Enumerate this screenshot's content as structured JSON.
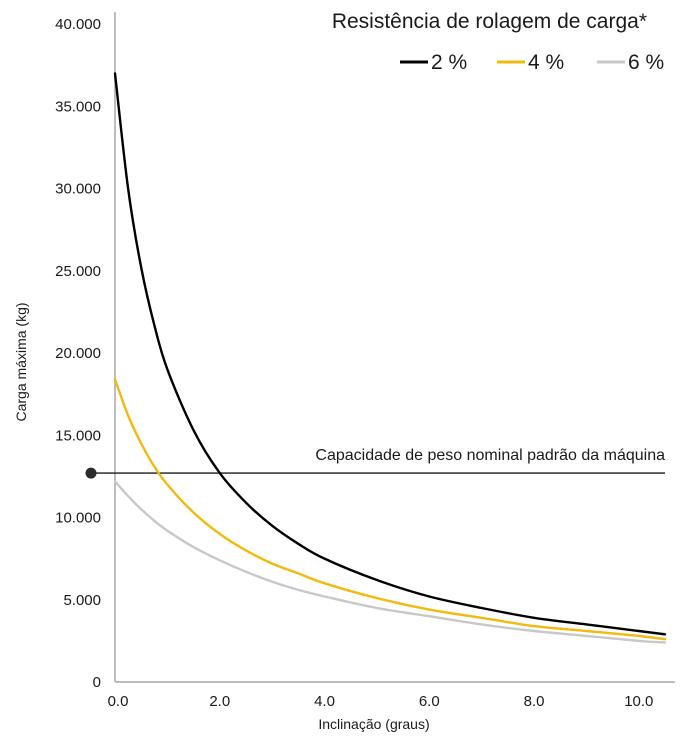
{
  "chart_data": {
    "type": "line",
    "title": "",
    "xlabel": "Inclinação (graus)",
    "ylabel": "Carga máxima (kg)",
    "xlim": [
      0,
      10.5
    ],
    "ylim": [
      0,
      40000
    ],
    "x_ticks": [
      0,
      2,
      4,
      6,
      8,
      10
    ],
    "x_tick_labels": [
      "0.0",
      "2.0",
      "4.0",
      "6.0",
      "8.0",
      "10.0"
    ],
    "y_ticks": [
      0,
      5000,
      10000,
      15000,
      20000,
      25000,
      30000,
      35000,
      40000
    ],
    "y_tick_labels": [
      "0",
      "5.000",
      "10.000",
      "15.000",
      "20.000",
      "25.000",
      "30.000",
      "35.000",
      "40.000"
    ],
    "grid": false,
    "legend": {
      "title": "Resistência de rolagem de carga*",
      "placement": "top-right"
    },
    "series": [
      {
        "name": "2 %",
        "color": "#000000",
        "x": [
          0,
          0.25,
          0.5,
          0.75,
          1.0,
          1.5,
          2.0,
          2.5,
          3.0,
          3.5,
          4.0,
          5.0,
          6.0,
          7.0,
          8.0,
          9.0,
          10.0,
          10.5
        ],
        "values": [
          37000,
          30000,
          25200,
          21700,
          19000,
          15300,
          12700,
          10900,
          9500,
          8400,
          7500,
          6200,
          5200,
          4500,
          3900,
          3500,
          3100,
          2900
        ]
      },
      {
        "name": "4 %",
        "color": "#f2b90f",
        "x": [
          0,
          0.25,
          0.5,
          0.75,
          1.0,
          1.5,
          2.0,
          2.5,
          3.0,
          3.5,
          4.0,
          5.0,
          6.0,
          7.0,
          8.0,
          9.0,
          10.0,
          10.5
        ],
        "values": [
          18400,
          16200,
          14500,
          13100,
          12000,
          10300,
          9000,
          8000,
          7200,
          6600,
          6000,
          5100,
          4400,
          3900,
          3400,
          3100,
          2800,
          2600
        ]
      },
      {
        "name": "6 %",
        "color": "#c8c8c8",
        "x": [
          0,
          0.25,
          0.5,
          0.75,
          1.0,
          1.5,
          2.0,
          2.5,
          3.0,
          3.5,
          4.0,
          5.0,
          6.0,
          7.0,
          8.0,
          9.0,
          10.0,
          10.5
        ],
        "values": [
          12200,
          11300,
          10500,
          9800,
          9200,
          8200,
          7400,
          6700,
          6100,
          5600,
          5200,
          4500,
          4000,
          3500,
          3100,
          2800,
          2500,
          2400
        ]
      }
    ],
    "reference_line": {
      "label": "Capacidade de peso nominal padrão da máquina",
      "value": 12700,
      "color": "#1a1a1a"
    }
  }
}
